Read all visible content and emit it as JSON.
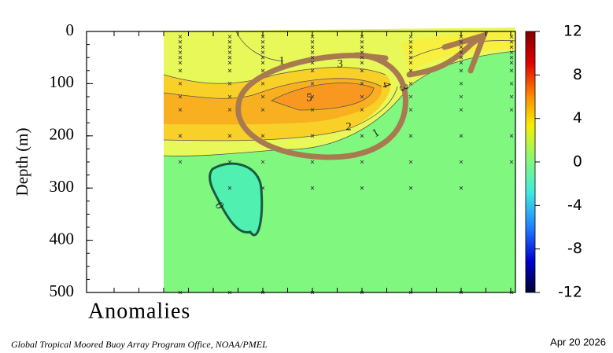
{
  "chart_data": {
    "type": "contour",
    "y_label": "Depth (m)",
    "ylim": [
      0,
      500
    ],
    "yticks": [
      0,
      100,
      200,
      300,
      400,
      500
    ],
    "y_inverted": true,
    "x_label": "Anomalies",
    "colorbar": {
      "lim": [
        -12,
        12
      ],
      "ticks": [
        12,
        8,
        4,
        0,
        -4,
        -8,
        -12
      ]
    },
    "contour_labels": [
      1,
      3,
      5,
      4,
      3,
      2,
      1,
      0
    ],
    "footer": "Global Tropical Moored Buoy Array Program Office, NOAA/PMEL",
    "date": "Apr 20 2026"
  }
}
